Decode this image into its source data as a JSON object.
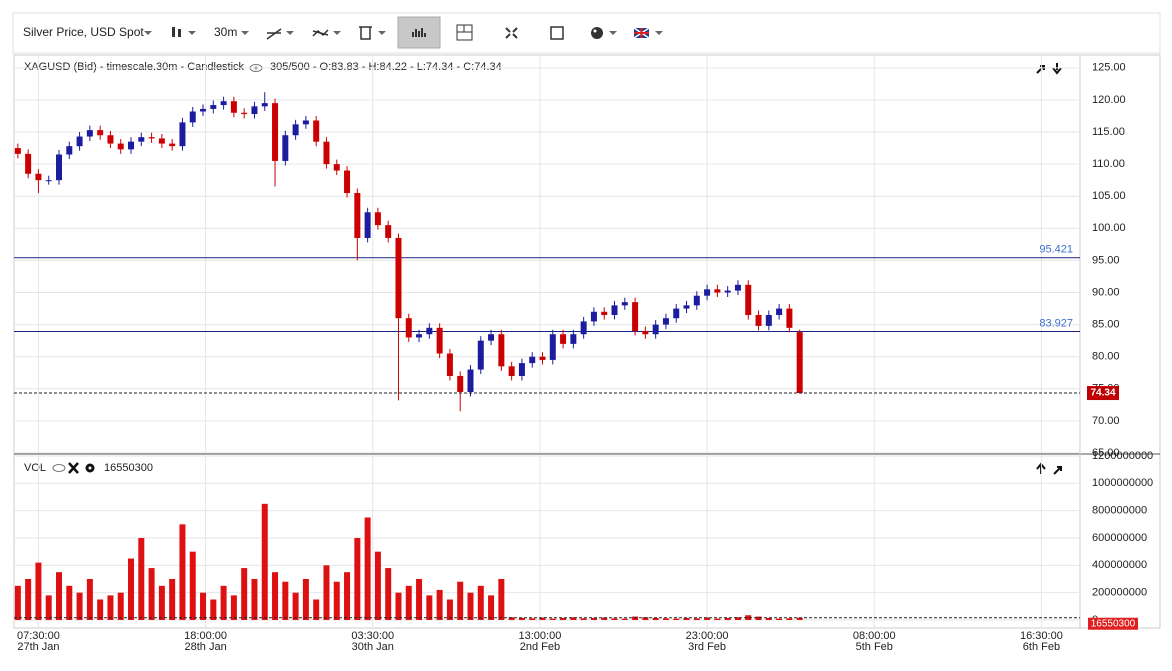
{
  "chart_data": {
    "type": "candlestick",
    "toolbar": {
      "instrument": "Silver Price, USD Spot",
      "timeframe": "30m"
    },
    "series_title": "XAGUSD (Bid) - timescale.30m - Candlestick",
    "status": "305/500 - O:83.83 - H:84.22 - L:74.34 - C:74.34",
    "x": [
      0,
      4,
      8,
      12,
      16,
      20,
      24,
      28,
      32,
      36,
      40,
      44,
      48,
      52,
      56,
      60,
      64,
      68,
      72,
      76,
      80,
      84,
      88,
      92,
      96,
      100,
      104,
      108,
      112,
      116,
      120,
      124,
      128,
      132,
      136,
      140,
      144,
      148,
      152,
      156,
      160,
      164,
      168,
      172,
      176,
      180,
      184,
      188,
      192,
      196,
      200,
      204,
      208,
      212,
      216,
      220,
      224,
      228,
      232,
      236,
      240,
      244,
      248,
      252,
      256,
      260,
      264,
      268,
      272,
      276,
      280,
      284,
      288,
      292,
      296,
      300,
      304
    ],
    "open": [
      112.5,
      111.6,
      108.5,
      107.5,
      107.5,
      111.5,
      112.8,
      114.3,
      115.3,
      114.5,
      113.2,
      112.3,
      113.5,
      114.2,
      114.0,
      113.2,
      112.8,
      116.5,
      118.2,
      118.6,
      119.2,
      119.8,
      118.0,
      117.8,
      119.0,
      119.5,
      110.5,
      114.5,
      116.2,
      116.8,
      113.5,
      110.0,
      109.0,
      105.5,
      98.5,
      102.5,
      100.5,
      98.5,
      86.0,
      83.0,
      83.5,
      84.5,
      80.5,
      77.0,
      74.5,
      78.0,
      82.5,
      83.5,
      78.5,
      77.0,
      79.0,
      80.0,
      79.5,
      83.5,
      82.0,
      83.5,
      85.5,
      87.0,
      86.5,
      88.0,
      88.5,
      84.0,
      83.5,
      85.0,
      86.0,
      87.5,
      88.0,
      89.5,
      90.5,
      90.0,
      90.3,
      91.2,
      86.5,
      84.8,
      86.5,
      87.5,
      83.83
    ],
    "high": [
      113.2,
      112.3,
      109.2,
      108.2,
      112.2,
      113.5,
      115.0,
      116.0,
      116.0,
      115.2,
      113.9,
      114.2,
      114.9,
      114.9,
      114.7,
      113.9,
      117.2,
      118.9,
      119.3,
      119.9,
      120.5,
      120.5,
      118.7,
      119.7,
      121.2,
      120.2,
      115.2,
      116.9,
      117.5,
      117.5,
      114.2,
      110.7,
      109.7,
      106.2,
      103.2,
      103.2,
      101.2,
      99.2,
      86.7,
      84.2,
      85.2,
      85.2,
      81.2,
      77.7,
      78.7,
      83.2,
      84.2,
      84.2,
      79.2,
      79.7,
      80.7,
      80.7,
      84.2,
      84.2,
      84.2,
      86.2,
      87.7,
      87.7,
      88.7,
      89.2,
      89.2,
      84.7,
      85.7,
      86.7,
      88.2,
      88.7,
      90.2,
      91.2,
      91.2,
      91.0,
      91.9,
      91.9,
      87.2,
      87.2,
      88.2,
      88.2,
      84.22
    ],
    "low": [
      110.9,
      107.8,
      105.5,
      106.8,
      106.8,
      110.8,
      112.1,
      113.6,
      113.8,
      112.5,
      111.6,
      111.6,
      112.8,
      113.3,
      112.5,
      112.1,
      112.1,
      115.8,
      117.5,
      117.9,
      118.5,
      117.3,
      117.1,
      117.1,
      118.3,
      106.5,
      109.8,
      113.8,
      115.5,
      112.8,
      109.3,
      108.3,
      104.8,
      95.0,
      97.8,
      99.8,
      97.8,
      73.2,
      82.3,
      82.3,
      82.8,
      79.8,
      76.3,
      71.5,
      73.8,
      77.3,
      81.8,
      77.8,
      76.3,
      76.3,
      78.3,
      78.8,
      78.8,
      81.3,
      81.3,
      82.8,
      84.8,
      85.8,
      85.8,
      87.3,
      83.3,
      82.8,
      82.8,
      84.3,
      85.3,
      86.8,
      87.3,
      88.8,
      89.3,
      89.3,
      89.6,
      85.8,
      84.1,
      84.1,
      85.8,
      83.8,
      74.34
    ],
    "close": [
      111.6,
      108.5,
      107.5,
      107.5,
      111.5,
      112.8,
      114.3,
      115.3,
      114.5,
      113.2,
      112.3,
      113.5,
      114.2,
      114.0,
      113.2,
      112.8,
      116.5,
      118.2,
      118.6,
      119.2,
      119.8,
      118.0,
      117.8,
      119.0,
      119.5,
      110.5,
      114.5,
      116.2,
      116.8,
      113.5,
      110.0,
      109.0,
      105.5,
      98.5,
      102.5,
      100.5,
      98.5,
      86.0,
      83.0,
      83.5,
      84.5,
      80.5,
      77.0,
      74.5,
      78.0,
      82.5,
      83.5,
      78.5,
      77.0,
      79.0,
      80.0,
      79.5,
      83.5,
      82.0,
      83.5,
      85.5,
      87.0,
      86.5,
      88.0,
      88.5,
      84.0,
      83.5,
      85.0,
      86.0,
      87.5,
      88.0,
      89.5,
      90.5,
      90.0,
      90.3,
      91.2,
      86.5,
      84.8,
      86.5,
      87.5,
      84.5,
      74.34
    ],
    "up_color": "#1c1c9e",
    "down_color": "#cc0000",
    "xlim": [
      -1.5,
      413
    ],
    "xticks": [
      {
        "value": 8,
        "label": "07:30:00"
      },
      {
        "value": 73,
        "label": "18:00:00"
      },
      {
        "value": 138,
        "label": "03:30:00"
      },
      {
        "value": 203,
        "label": "13:00:00"
      },
      {
        "value": 268,
        "label": "23:00:00"
      },
      {
        "value": 333,
        "label": "08:00:00"
      },
      {
        "value": 398,
        "label": "16:30:00"
      }
    ],
    "xtick_dates": [
      "27th Jan",
      "28th Jan",
      "30th Jan",
      "2nd Feb",
      "3rd Feb",
      "5th Feb",
      "6th Feb"
    ],
    "ylim": [
      65,
      127
    ],
    "yticks": [
      {
        "value": 65,
        "label": "65.00"
      },
      {
        "value": 70,
        "label": "70.00"
      },
      {
        "value": 75,
        "label": "75.00"
      },
      {
        "value": 80,
        "label": "80.00"
      },
      {
        "value": 85,
        "label": "85.00"
      },
      {
        "value": 90,
        "label": "90.00"
      },
      {
        "value": 95,
        "label": "95.00"
      },
      {
        "value": 100,
        "label": "100.00"
      },
      {
        "value": 105,
        "label": "105.00"
      },
      {
        "value": 110,
        "label": "110.00"
      },
      {
        "value": 115,
        "label": "115.00"
      },
      {
        "value": 120,
        "label": "120.00"
      },
      {
        "value": 125,
        "label": "125.00"
      }
    ],
    "grid": true,
    "levels": [
      95.421,
      83.927
    ],
    "level_color": "#1a237e",
    "volume": {
      "name": "VOL",
      "color": "#dd1111",
      "values": [
        250000000,
        300000000,
        420000000,
        180000000,
        350000000,
        250000000,
        200000000,
        300000000,
        150000000,
        180000000,
        200000000,
        450000000,
        600000000,
        380000000,
        250000000,
        300000000,
        700000000,
        500000000,
        200000000,
        150000000,
        250000000,
        180000000,
        380000000,
        300000000,
        850000000,
        350000000,
        280000000,
        200000000,
        300000000,
        150000000,
        400000000,
        280000000,
        350000000,
        600000000,
        750000000,
        500000000,
        380000000,
        200000000,
        250000000,
        300000000,
        180000000,
        220000000,
        150000000,
        280000000,
        200000000,
        250000000,
        180000000,
        300000000,
        20000000,
        15000000,
        12000000,
        18000000,
        10000000,
        15000000,
        20000000,
        12000000,
        15000000,
        18000000,
        12000000,
        10000000,
        25000000,
        20000000,
        15000000,
        12000000,
        10000000,
        15000000,
        12000000,
        18000000,
        10000000,
        15000000,
        20000000,
        35000000,
        25000000,
        15000000,
        10000000,
        12000000,
        16550300
      ],
      "ylim": [
        0,
        1200000000
      ],
      "yticks": [
        0,
        200000000,
        400000000,
        600000000,
        800000000,
        1000000000,
        1200000000
      ]
    }
  }
}
